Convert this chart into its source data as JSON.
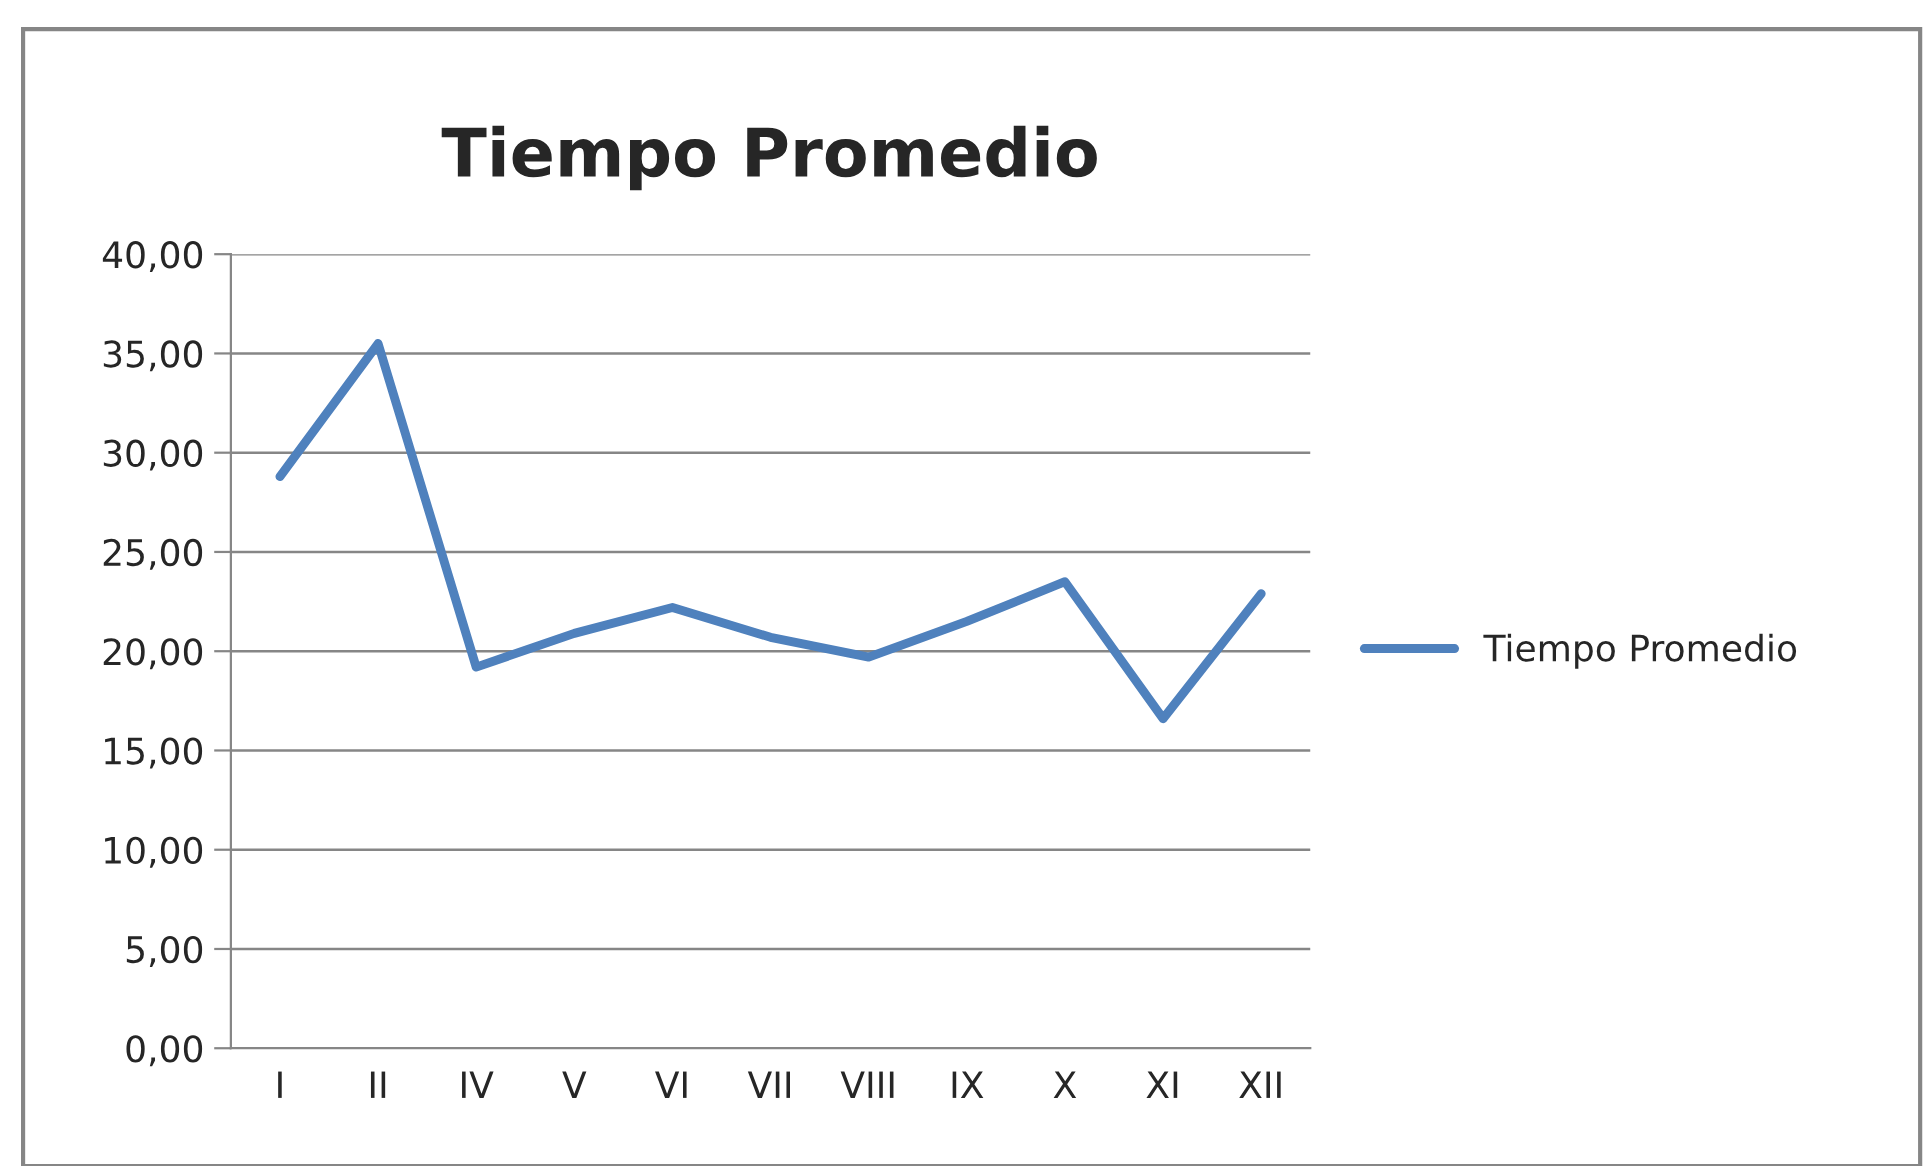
{
  "chart_data": {
    "type": "line",
    "title": "Tiempo Promedio",
    "categories": [
      "I",
      "II",
      "IV",
      "V",
      "VI",
      "VII",
      "VIII",
      "IX",
      "X",
      "XI",
      "XII"
    ],
    "series": [
      {
        "name": "Tiempo Promedio",
        "color": "#4f81bd",
        "values": [
          28.8,
          35.5,
          19.2,
          20.9,
          22.2,
          20.7,
          19.7,
          21.5,
          23.5,
          16.6,
          22.9
        ]
      }
    ],
    "ylim": [
      0,
      40
    ],
    "yticks": [
      {
        "value": 0,
        "label": "0,00"
      },
      {
        "value": 5,
        "label": "5,00"
      },
      {
        "value": 10,
        "label": "10,00"
      },
      {
        "value": 15,
        "label": "15,00"
      },
      {
        "value": 20,
        "label": "20,00"
      },
      {
        "value": 25,
        "label": "25,00"
      },
      {
        "value": 30,
        "label": "30,00"
      },
      {
        "value": 35,
        "label": "35,00"
      },
      {
        "value": 40,
        "label": "40,00"
      }
    ],
    "grid": "y",
    "legend": "right",
    "marker": "none",
    "line_style": "solid"
  }
}
